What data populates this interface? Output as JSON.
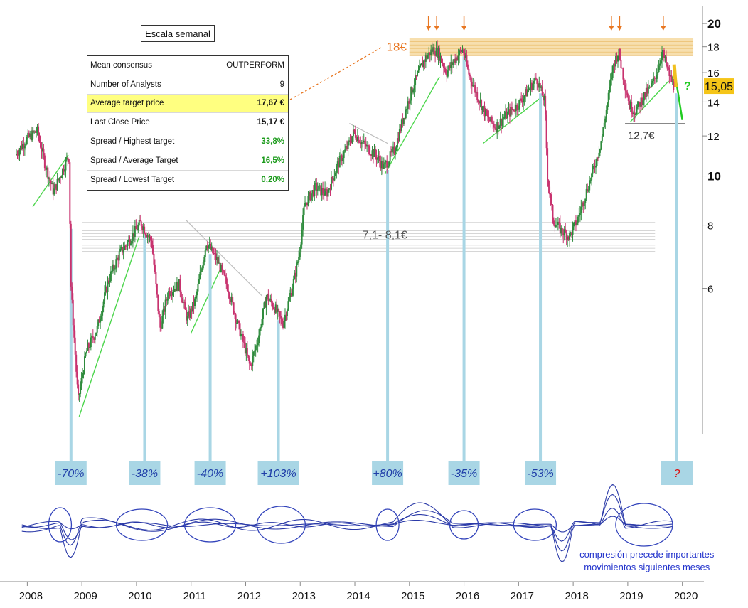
{
  "chart_data": {
    "type": "candlestick",
    "subtitle_box": "Escala semanal",
    "y_scale": "log",
    "ylim": [
      3.0,
      21.0
    ],
    "y_ticks": [
      6,
      8,
      10,
      12,
      14,
      16,
      18,
      20
    ],
    "x_ticks": [
      "2008",
      "2009",
      "2010",
      "2011",
      "2012",
      "2013",
      "2014",
      "2015",
      "2016",
      "2017",
      "2018",
      "2019",
      "2020"
    ],
    "last_price_label": "15,05",
    "price_path": [
      [
        "2007.8",
        11.0
      ],
      [
        "2008.0",
        11.8
      ],
      [
        "2008.2",
        12.3
      ],
      [
        "2008.35",
        10.5
      ],
      [
        "2008.5",
        9.3
      ],
      [
        "2008.7",
        10.5
      ],
      [
        "2008.78",
        11.0
      ],
      [
        "2008.82",
        6.0
      ],
      [
        "2008.95",
        3.6
      ],
      [
        "2009.1",
        4.5
      ],
      [
        "2009.3",
        5.0
      ],
      [
        "2009.5",
        6.2
      ],
      [
        "2009.7",
        7.0
      ],
      [
        "2009.9",
        7.5
      ],
      [
        "2010.1",
        8.1
      ],
      [
        "2010.3",
        7.4
      ],
      [
        "2010.45",
        5.0
      ],
      [
        "2010.6",
        5.9
      ],
      [
        "2010.8",
        6.1
      ],
      [
        "2010.95",
        5.2
      ],
      [
        "2011.1",
        5.7
      ],
      [
        "2011.3",
        7.4
      ],
      [
        "2011.5",
        6.8
      ],
      [
        "2011.7",
        6.0
      ],
      [
        "2011.85",
        5.2
      ],
      [
        "2012.0",
        4.6
      ],
      [
        "2012.1",
        4.2
      ],
      [
        "2012.25",
        4.8
      ],
      [
        "2012.4",
        5.8
      ],
      [
        "2012.55",
        5.5
      ],
      [
        "2012.7",
        5.1
      ],
      [
        "2012.9",
        6.2
      ],
      [
        "2013.0",
        7.0
      ],
      [
        "2013.1",
        8.8
      ],
      [
        "2013.3",
        9.5
      ],
      [
        "2013.5",
        9.2
      ],
      [
        "2013.7",
        10.5
      ],
      [
        "2013.9",
        11.5
      ],
      [
        "2014.0",
        12.2
      ],
      [
        "2014.2",
        11.5
      ],
      [
        "2014.4",
        11.0
      ],
      [
        "2014.55",
        10.4
      ],
      [
        "2014.75",
        11.3
      ],
      [
        "2014.95",
        13.5
      ],
      [
        "2015.1",
        15.2
      ],
      [
        "2015.3",
        17.0
      ],
      [
        "2015.45",
        17.8
      ],
      [
        "2015.55",
        17.5
      ],
      [
        "2015.7",
        16.0
      ],
      [
        "2015.85",
        17.0
      ],
      [
        "2016.0",
        17.8
      ],
      [
        "2016.1",
        16.0
      ],
      [
        "2016.25",
        14.5
      ],
      [
        "2016.45",
        13.0
      ],
      [
        "2016.6",
        12.5
      ],
      [
        "2016.8",
        13.2
      ],
      [
        "2017.0",
        13.8
      ],
      [
        "2017.2",
        14.8
      ],
      [
        "2017.35",
        15.6
      ],
      [
        "2017.45",
        14.5
      ],
      [
        "2017.5",
        14.0
      ],
      [
        "2017.55",
        10.0
      ],
      [
        "2017.65",
        8.2
      ],
      [
        "2017.8",
        7.8
      ],
      [
        "2017.95",
        7.6
      ],
      [
        "2018.1",
        8.2
      ],
      [
        "2018.2",
        8.9
      ],
      [
        "2018.3",
        9.6
      ],
      [
        "2018.45",
        10.8
      ],
      [
        "2018.55",
        12.0
      ],
      [
        "2018.65",
        14.0
      ],
      [
        "2018.75",
        16.5
      ],
      [
        "2018.85",
        17.6
      ],
      [
        "2018.95",
        15.5
      ],
      [
        "2019.05",
        13.8
      ],
      [
        "2019.15",
        13.4
      ],
      [
        "2019.3",
        14.3
      ],
      [
        "2019.45",
        15.0
      ],
      [
        "2019.55",
        16.0
      ],
      [
        "2019.65",
        17.6
      ],
      [
        "2019.75",
        16.2
      ],
      [
        "2019.85",
        15.05
      ]
    ],
    "resistance_band": {
      "label": "18€",
      "value": 18.0
    },
    "support_band": {
      "label": "7,1- 8,1€",
      "low": 7.1,
      "high": 8.1
    },
    "support_line": {
      "label": "12,7€",
      "value": 12.7
    },
    "resistance_arrows_at": [
      "2015.35",
      "2015.5",
      "2016.0",
      "2018.7",
      "2018.85",
      "2019.65"
    ],
    "move_labels": [
      {
        "text": "-70%",
        "x": "2008.8"
      },
      {
        "text": "-38%",
        "x": "2010.15"
      },
      {
        "text": "-40%",
        "x": "2011.35"
      },
      {
        "text": "+103%",
        "x": "2012.6"
      },
      {
        "text": "+80%",
        "x": "2014.6"
      },
      {
        "text": "-35%",
        "x": "2016.0"
      },
      {
        "text": "-53%",
        "x": "2017.4"
      },
      {
        "text": "?",
        "x": "2019.9"
      }
    ],
    "note_lines": [
      "compresión precede importantes",
      "movimientos siguientes meses"
    ],
    "question_mark_label": "?"
  },
  "consensus_table": {
    "rows": [
      {
        "label": "Mean consensus",
        "value": "OUTPERFORM",
        "style": "plain",
        "highlight": false
      },
      {
        "label": "Number of Analysts",
        "value": "9",
        "style": "plain",
        "highlight": false
      },
      {
        "label": "Average target price",
        "value": "17,67 €",
        "style": "bold",
        "highlight": true
      },
      {
        "label": "Last Close Price",
        "value": "15,17 €",
        "style": "bold",
        "highlight": false
      },
      {
        "label": "Spread / Highest target",
        "value": "33,8%",
        "style": "green",
        "highlight": false
      },
      {
        "label": "Spread / Average Target",
        "value": "16,5%",
        "style": "green",
        "highlight": false
      },
      {
        "label": "Spread / Lowest Target",
        "value": "0,20%",
        "style": "green",
        "highlight": false
      }
    ]
  },
  "colors": {
    "candle_up": "#2e8b3c",
    "candle_down": "#c8326e",
    "trend_line": "#4cd64c",
    "resistance_band": "#f6d9a0",
    "arrow": "#e87722",
    "label_box": "#a9d6e5",
    "label_text": "#1f3ea8",
    "osc": "#2b3aa8",
    "note_text": "#2233cc",
    "last_price_box": "#f5c518"
  }
}
